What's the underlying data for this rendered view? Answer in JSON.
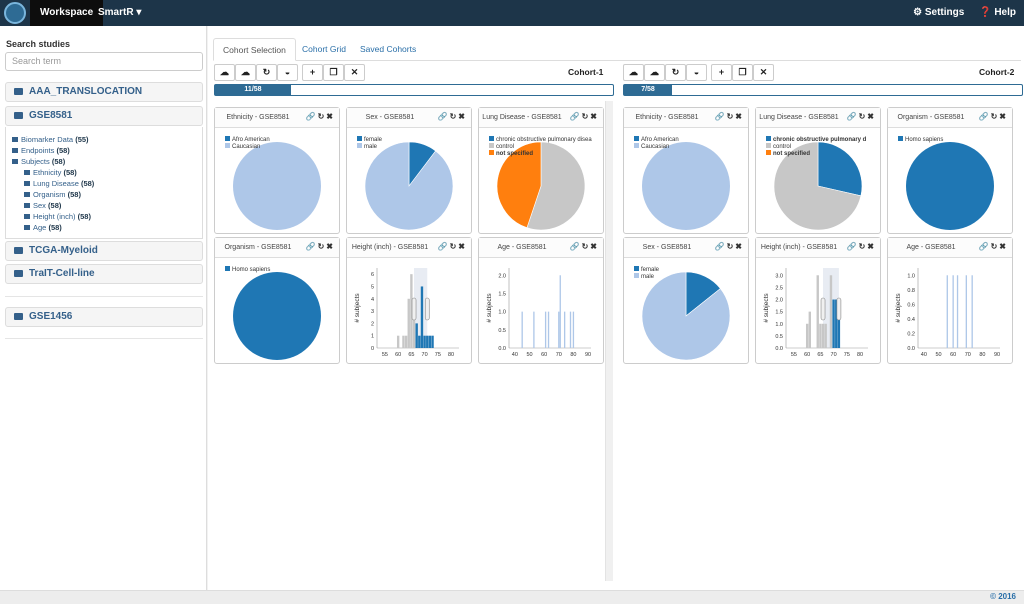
{
  "topbar": {
    "workspace": "Workspace",
    "smartr": "SmartR ▾",
    "settings": "⚙ Settings",
    "help": "❓ Help"
  },
  "sidebar": {
    "search_label": "Search studies",
    "search_placeholder": "Search term",
    "studies": [
      "AAA_TRANSLOCATION",
      "GSE8581",
      "TCGA-Myeloid",
      "TraIT-Cell-line",
      "GSE1456"
    ],
    "tree": [
      {
        "label": "Biomarker Data",
        "count": "(55)"
      },
      {
        "label": "Endpoints",
        "count": "(58)"
      },
      {
        "label": "Subjects",
        "count": "(58)"
      },
      {
        "label": "Ethnicity",
        "count": "(58)"
      },
      {
        "label": "Lung Disease",
        "count": "(58)"
      },
      {
        "label": "Organism",
        "count": "(58)"
      },
      {
        "label": "Sex",
        "count": "(58)"
      },
      {
        "label": "Height (inch)",
        "count": "(58)"
      },
      {
        "label": "Age",
        "count": "(58)"
      }
    ]
  },
  "tabs": [
    "Cohort Selection",
    "Cohort Grid",
    "Saved Cohorts"
  ],
  "cohorts": [
    {
      "title": "Cohort-1",
      "progress": "11/58",
      "fraction": 0.19,
      "panels": [
        {
          "title": "Ethnicity - GSE8581",
          "type": "pie",
          "legend": [
            "Afro American",
            "Caucasian"
          ],
          "values": [
            0,
            58
          ],
          "colors": [
            "#1f77b4",
            "#aec7e8"
          ]
        },
        {
          "title": "Sex - GSE8581",
          "type": "pie",
          "legend": [
            "female",
            "male"
          ],
          "values": [
            6,
            52
          ],
          "colors": [
            "#1f77b4",
            "#aec7e8"
          ]
        },
        {
          "title": "Lung Disease - GSE8581",
          "type": "pie",
          "legend": [
            "chronic obstructive pulmonary disea",
            "control",
            "not specified"
          ],
          "values": [
            0,
            32,
            26
          ],
          "colors": [
            "#1f77b4",
            "#c7c7c7",
            "#ff7f0e"
          ]
        },
        {
          "title": "Organism - GSE8581",
          "type": "pie",
          "legend": [
            "Homo sapiens"
          ],
          "values": [
            58
          ],
          "colors": [
            "#1f77b4"
          ]
        },
        {
          "title": "Height (inch) - GSE8581",
          "type": "hist",
          "ylabel": "# subjects",
          "xticks": [
            "55",
            "60",
            "65",
            "70",
            "75",
            "80"
          ],
          "yticks": [
            "0",
            "1",
            "2",
            "3",
            "4",
            "5",
            "6"
          ],
          "xmin": 52,
          "xmax": 83,
          "ymax": 6.5,
          "bars": [
            [
              60,
              1,
              "g"
            ],
            [
              62,
              1,
              "g"
            ],
            [
              63,
              1,
              "g"
            ],
            [
              64,
              4,
              "g"
            ],
            [
              65,
              6,
              "g"
            ],
            [
              66,
              3,
              "g"
            ],
            [
              67,
              2,
              "b"
            ],
            [
              68,
              1,
              "b"
            ],
            [
              69,
              5,
              "b"
            ],
            [
              70,
              1,
              "b"
            ],
            [
              71,
              1,
              "b"
            ],
            [
              72,
              1,
              "b"
            ],
            [
              73,
              1,
              "b"
            ]
          ],
          "brush": [
            66,
            71
          ]
        },
        {
          "title": "Age - GSE8581",
          "type": "hist",
          "ylabel": "# subjects",
          "xticks": [
            "40",
            "50",
            "60",
            "70",
            "80",
            "90"
          ],
          "yticks": [
            "0.0",
            "0.5",
            "1.0",
            "1.5",
            "2.0"
          ],
          "xmin": 36,
          "xmax": 92,
          "ymax": 2.2,
          "bars": [
            [
              45,
              1,
              "l"
            ],
            [
              53,
              1,
              "l"
            ],
            [
              61,
              1,
              "l"
            ],
            [
              63,
              1,
              "l"
            ],
            [
              70,
              1,
              "l"
            ],
            [
              71,
              2,
              "l"
            ],
            [
              74,
              1,
              "l"
            ],
            [
              78,
              1,
              "l"
            ],
            [
              80,
              1,
              "l"
            ]
          ]
        }
      ]
    },
    {
      "title": "Cohort-2",
      "progress": "7/58",
      "fraction": 0.12,
      "panels": [
        {
          "title": "Ethnicity - GSE8581",
          "type": "pie",
          "legend": [
            "Afro American",
            "Caucasian"
          ],
          "values": [
            0,
            7
          ],
          "colors": [
            "#1f77b4",
            "#aec7e8"
          ]
        },
        {
          "title": "Lung Disease - GSE8581",
          "type": "pie",
          "legend": [
            "chronic obstructive pulmonary d",
            "control",
            "not specified"
          ],
          "values": [
            2,
            5,
            0
          ],
          "colors": [
            "#1f77b4",
            "#c7c7c7",
            "#ff7f0e"
          ]
        },
        {
          "title": "Organism - GSE8581",
          "type": "pie",
          "legend": [
            "Homo sapiens"
          ],
          "values": [
            7
          ],
          "colors": [
            "#1f77b4"
          ]
        },
        {
          "title": "Sex - GSE8581",
          "type": "pie",
          "legend": [
            "female",
            "male"
          ],
          "values": [
            1,
            6
          ],
          "colors": [
            "#1f77b4",
            "#aec7e8"
          ]
        },
        {
          "title": "Height (inch) - GSE8581",
          "type": "hist",
          "ylabel": "# subjects",
          "xticks": [
            "55",
            "60",
            "65",
            "70",
            "75",
            "80"
          ],
          "yticks": [
            "0.0",
            "0.5",
            "1.0",
            "1.5",
            "2.0",
            "2.5",
            "3.0"
          ],
          "xmin": 52,
          "xmax": 83,
          "ymax": 3.3,
          "bars": [
            [
              60,
              1,
              "g"
            ],
            [
              61,
              1.5,
              "g"
            ],
            [
              64,
              3,
              "g"
            ],
            [
              65,
              1,
              "g"
            ],
            [
              66,
              1,
              "g"
            ],
            [
              67,
              1,
              "g"
            ],
            [
              69,
              3,
              "g"
            ],
            [
              70,
              2,
              "b"
            ],
            [
              71,
              2,
              "b"
            ],
            [
              72,
              2,
              "b"
            ]
          ],
          "brush": [
            66,
            72
          ]
        },
        {
          "title": "Age - GSE8581",
          "type": "hist",
          "ylabel": "# subjects",
          "xticks": [
            "40",
            "50",
            "60",
            "70",
            "80",
            "90"
          ],
          "yticks": [
            "0.0",
            "0.2",
            "0.4",
            "0.6",
            "0.8",
            "1.0"
          ],
          "xmin": 36,
          "xmax": 92,
          "ymax": 1.1,
          "bars": [
            [
              56,
              1,
              "l"
            ],
            [
              60,
              1,
              "l"
            ],
            [
              63,
              1,
              "l"
            ],
            [
              69,
              1,
              "l"
            ],
            [
              73,
              1,
              "l"
            ]
          ]
        }
      ]
    }
  ],
  "footer": "© 2016"
}
